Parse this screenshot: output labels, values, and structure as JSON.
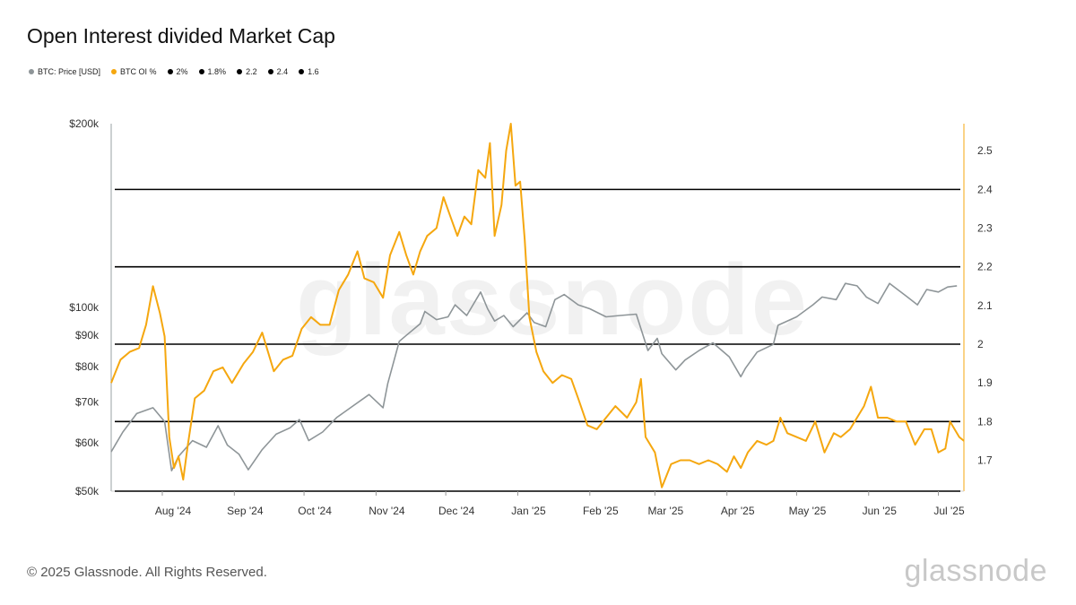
{
  "title": "Open Interest divided Market Cap",
  "legend": [
    {
      "label": "BTC: Price [USD]",
      "color": "#8e9598"
    },
    {
      "label": "BTC OI %",
      "color": "#f5a70f"
    },
    {
      "label": "2%",
      "color": "#000000"
    },
    {
      "label": "1.8%",
      "color": "#000000"
    },
    {
      "label": "2.2",
      "color": "#000000"
    },
    {
      "label": "2.4",
      "color": "#000000"
    },
    {
      "label": "1.6",
      "color": "#000000"
    }
  ],
  "footer": "© 2025 Glassnode. All Rights Reserved.",
  "brand": "glassnode",
  "watermark": "glassnode",
  "chart_data": {
    "type": "line",
    "title": "Open Interest divided Market Cap",
    "x_range": [
      "2024-07-10",
      "2025-07-12"
    ],
    "x_ticks": [
      {
        "date": "2024-08-01",
        "label": "Aug '24"
      },
      {
        "date": "2024-09-01",
        "label": "Sep '24"
      },
      {
        "date": "2024-10-01",
        "label": "Oct '24"
      },
      {
        "date": "2024-11-01",
        "label": "Nov '24"
      },
      {
        "date": "2024-12-01",
        "label": "Dec '24"
      },
      {
        "date": "2025-01-01",
        "label": "Jan '25"
      },
      {
        "date": "2025-02-01",
        "label": "Feb '25"
      },
      {
        "date": "2025-03-01",
        "label": "Mar '25"
      },
      {
        "date": "2025-04-01",
        "label": "Apr '25"
      },
      {
        "date": "2025-05-01",
        "label": "May '25"
      },
      {
        "date": "2025-06-01",
        "label": "Jun '25"
      },
      {
        "date": "2025-07-01",
        "label": "Jul '25"
      }
    ],
    "y_left": {
      "scale": "log",
      "range": [
        50000,
        200000
      ],
      "ticks": [
        {
          "value": 50000,
          "label": "$50k"
        },
        {
          "value": 60000,
          "label": "$60k"
        },
        {
          "value": 70000,
          "label": "$70k"
        },
        {
          "value": 80000,
          "label": "$80k"
        },
        {
          "value": 90000,
          "label": "$90k"
        },
        {
          "value": 100000,
          "label": "$100k"
        },
        {
          "value": 200000,
          "label": "$200k"
        }
      ]
    },
    "y_right": {
      "scale": "linear",
      "range": [
        1.62,
        2.57
      ],
      "ticks": [
        {
          "value": 1.7,
          "label": "1.7"
        },
        {
          "value": 1.8,
          "label": "1.8"
        },
        {
          "value": 1.9,
          "label": "1.9"
        },
        {
          "value": 2.0,
          "label": "2"
        },
        {
          "value": 2.1,
          "label": "2.1"
        },
        {
          "value": 2.2,
          "label": "2.2"
        },
        {
          "value": 2.3,
          "label": "2.3"
        },
        {
          "value": 2.4,
          "label": "2.4"
        },
        {
          "value": 2.5,
          "label": "2.5"
        }
      ]
    },
    "hlines": [
      2.4,
      2.2,
      2.0,
      1.8,
      1.62
    ],
    "series": [
      {
        "name": "BTC: Price [USD]",
        "axis": "left",
        "color": "#8e9598",
        "points": [
          [
            "2024-07-10",
            58000
          ],
          [
            "2024-07-15",
            62500
          ],
          [
            "2024-07-21",
            67000
          ],
          [
            "2024-07-28",
            68500
          ],
          [
            "2024-08-02",
            65000
          ],
          [
            "2024-08-05",
            54000
          ],
          [
            "2024-08-08",
            57000
          ],
          [
            "2024-08-14",
            60500
          ],
          [
            "2024-08-20",
            59000
          ],
          [
            "2024-08-25",
            64000
          ],
          [
            "2024-08-29",
            59500
          ],
          [
            "2024-09-03",
            57500
          ],
          [
            "2024-09-07",
            54200
          ],
          [
            "2024-09-13",
            58500
          ],
          [
            "2024-09-19",
            62000
          ],
          [
            "2024-09-25",
            63500
          ],
          [
            "2024-09-29",
            65500
          ],
          [
            "2024-10-03",
            60500
          ],
          [
            "2024-10-09",
            62500
          ],
          [
            "2024-10-15",
            66000
          ],
          [
            "2024-10-21",
            68500
          ],
          [
            "2024-10-29",
            72000
          ],
          [
            "2024-11-04",
            68500
          ],
          [
            "2024-11-06",
            75000
          ],
          [
            "2024-11-11",
            88000
          ],
          [
            "2024-11-14",
            90000
          ],
          [
            "2024-11-20",
            94000
          ],
          [
            "2024-11-22",
            98500
          ],
          [
            "2024-11-27",
            95500
          ],
          [
            "2024-12-02",
            96500
          ],
          [
            "2024-12-05",
            101000
          ],
          [
            "2024-12-10",
            97000
          ],
          [
            "2024-12-16",
            106000
          ],
          [
            "2024-12-19",
            99500
          ],
          [
            "2024-12-22",
            95000
          ],
          [
            "2024-12-26",
            97000
          ],
          [
            "2024-12-30",
            93000
          ],
          [
            "2025-01-05",
            98000
          ],
          [
            "2025-01-08",
            94500
          ],
          [
            "2025-01-13",
            93000
          ],
          [
            "2025-01-17",
            103000
          ],
          [
            "2025-01-21",
            105000
          ],
          [
            "2025-01-27",
            101000
          ],
          [
            "2025-02-01",
            99500
          ],
          [
            "2025-02-08",
            96500
          ],
          [
            "2025-02-14",
            97000
          ],
          [
            "2025-02-21",
            97500
          ],
          [
            "2025-02-26",
            85000
          ],
          [
            "2025-03-02",
            89000
          ],
          [
            "2025-03-04",
            84000
          ],
          [
            "2025-03-10",
            79000
          ],
          [
            "2025-03-14",
            82000
          ],
          [
            "2025-03-20",
            85000
          ],
          [
            "2025-03-26",
            87500
          ],
          [
            "2025-04-02",
            83000
          ],
          [
            "2025-04-07",
            77000
          ],
          [
            "2025-04-09",
            79500
          ],
          [
            "2025-04-14",
            84500
          ],
          [
            "2025-04-21",
            87000
          ],
          [
            "2025-04-23",
            93500
          ],
          [
            "2025-05-01",
            96500
          ],
          [
            "2025-05-08",
            101000
          ],
          [
            "2025-05-12",
            104000
          ],
          [
            "2025-05-18",
            103000
          ],
          [
            "2025-05-22",
            109500
          ],
          [
            "2025-05-27",
            108500
          ],
          [
            "2025-05-31",
            104000
          ],
          [
            "2025-06-05",
            101500
          ],
          [
            "2025-06-10",
            109500
          ],
          [
            "2025-06-17",
            104500
          ],
          [
            "2025-06-22",
            101000
          ],
          [
            "2025-06-26",
            107000
          ],
          [
            "2025-07-01",
            106000
          ],
          [
            "2025-07-05",
            108000
          ],
          [
            "2025-07-09",
            108500
          ]
        ]
      },
      {
        "name": "BTC OI %",
        "axis": "right",
        "color": "#f5a70f",
        "points": [
          [
            "2024-07-10",
            1.9
          ],
          [
            "2024-07-14",
            1.96
          ],
          [
            "2024-07-18",
            1.98
          ],
          [
            "2024-07-22",
            1.99
          ],
          [
            "2024-07-25",
            2.05
          ],
          [
            "2024-07-28",
            2.15
          ],
          [
            "2024-07-31",
            2.08
          ],
          [
            "2024-08-02",
            2.02
          ],
          [
            "2024-08-04",
            1.76
          ],
          [
            "2024-08-06",
            1.68
          ],
          [
            "2024-08-08",
            1.71
          ],
          [
            "2024-08-10",
            1.65
          ],
          [
            "2024-08-12",
            1.74
          ],
          [
            "2024-08-15",
            1.86
          ],
          [
            "2024-08-19",
            1.88
          ],
          [
            "2024-08-23",
            1.93
          ],
          [
            "2024-08-27",
            1.94
          ],
          [
            "2024-08-31",
            1.9
          ],
          [
            "2024-09-05",
            1.95
          ],
          [
            "2024-09-09",
            1.98
          ],
          [
            "2024-09-13",
            2.03
          ],
          [
            "2024-09-18",
            1.93
          ],
          [
            "2024-09-22",
            1.96
          ],
          [
            "2024-09-26",
            1.97
          ],
          [
            "2024-09-30",
            2.04
          ],
          [
            "2024-10-04",
            2.07
          ],
          [
            "2024-10-08",
            2.05
          ],
          [
            "2024-10-12",
            2.05
          ],
          [
            "2024-10-16",
            2.14
          ],
          [
            "2024-10-20",
            2.18
          ],
          [
            "2024-10-24",
            2.24
          ],
          [
            "2024-10-27",
            2.17
          ],
          [
            "2024-10-31",
            2.16
          ],
          [
            "2024-11-04",
            2.12
          ],
          [
            "2024-11-07",
            2.23
          ],
          [
            "2024-11-11",
            2.29
          ],
          [
            "2024-11-14",
            2.23
          ],
          [
            "2024-11-17",
            2.18
          ],
          [
            "2024-11-20",
            2.24
          ],
          [
            "2024-11-23",
            2.28
          ],
          [
            "2024-11-27",
            2.3
          ],
          [
            "2024-11-30",
            2.38
          ],
          [
            "2024-12-03",
            2.33
          ],
          [
            "2024-12-06",
            2.28
          ],
          [
            "2024-12-09",
            2.33
          ],
          [
            "2024-12-12",
            2.31
          ],
          [
            "2024-12-15",
            2.45
          ],
          [
            "2024-12-18",
            2.43
          ],
          [
            "2024-12-20",
            2.52
          ],
          [
            "2024-12-22",
            2.28
          ],
          [
            "2024-12-25",
            2.36
          ],
          [
            "2024-12-27",
            2.5
          ],
          [
            "2024-12-29",
            2.57
          ],
          [
            "2024-12-31",
            2.41
          ],
          [
            "2025-01-02",
            2.42
          ],
          [
            "2025-01-04",
            2.27
          ],
          [
            "2025-01-06",
            2.07
          ],
          [
            "2025-01-09",
            1.98
          ],
          [
            "2025-01-12",
            1.93
          ],
          [
            "2025-01-16",
            1.9
          ],
          [
            "2025-01-20",
            1.92
          ],
          [
            "2025-01-24",
            1.91
          ],
          [
            "2025-01-27",
            1.86
          ],
          [
            "2025-01-31",
            1.79
          ],
          [
            "2025-02-04",
            1.78
          ],
          [
            "2025-02-08",
            1.81
          ],
          [
            "2025-02-12",
            1.84
          ],
          [
            "2025-02-17",
            1.81
          ],
          [
            "2025-02-21",
            1.85
          ],
          [
            "2025-02-23",
            1.91
          ],
          [
            "2025-02-25",
            1.76
          ],
          [
            "2025-03-01",
            1.72
          ],
          [
            "2025-03-04",
            1.63
          ],
          [
            "2025-03-08",
            1.69
          ],
          [
            "2025-03-12",
            1.7
          ],
          [
            "2025-03-16",
            1.7
          ],
          [
            "2025-03-20",
            1.69
          ],
          [
            "2025-03-24",
            1.7
          ],
          [
            "2025-03-28",
            1.69
          ],
          [
            "2025-04-01",
            1.67
          ],
          [
            "2025-04-04",
            1.71
          ],
          [
            "2025-04-07",
            1.68
          ],
          [
            "2025-04-10",
            1.72
          ],
          [
            "2025-04-14",
            1.75
          ],
          [
            "2025-04-18",
            1.74
          ],
          [
            "2025-04-21",
            1.75
          ],
          [
            "2025-04-24",
            1.81
          ],
          [
            "2025-04-27",
            1.77
          ],
          [
            "2025-05-01",
            1.76
          ],
          [
            "2025-05-05",
            1.75
          ],
          [
            "2025-05-09",
            1.8
          ],
          [
            "2025-05-13",
            1.72
          ],
          [
            "2025-05-17",
            1.77
          ],
          [
            "2025-05-20",
            1.76
          ],
          [
            "2025-05-24",
            1.78
          ],
          [
            "2025-05-27",
            1.81
          ],
          [
            "2025-05-30",
            1.84
          ],
          [
            "2025-06-02",
            1.89
          ],
          [
            "2025-06-05",
            1.81
          ],
          [
            "2025-06-09",
            1.81
          ],
          [
            "2025-06-13",
            1.8
          ],
          [
            "2025-06-17",
            1.8
          ],
          [
            "2025-06-21",
            1.74
          ],
          [
            "2025-06-25",
            1.78
          ],
          [
            "2025-06-28",
            1.78
          ],
          [
            "2025-07-01",
            1.72
          ],
          [
            "2025-07-04",
            1.73
          ],
          [
            "2025-07-06",
            1.8
          ],
          [
            "2025-07-08",
            1.78
          ],
          [
            "2025-07-10",
            1.76
          ],
          [
            "2025-07-12",
            1.75
          ]
        ]
      }
    ]
  }
}
